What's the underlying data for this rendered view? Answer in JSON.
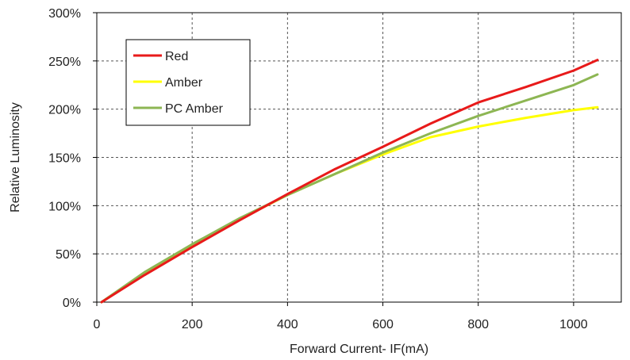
{
  "chart_data": {
    "type": "line",
    "title": "",
    "xlabel": "Forward Current- IF(mA)",
    "ylabel": "Relative Luminosity",
    "xlim": [
      0,
      1100
    ],
    "ylim": [
      0,
      300
    ],
    "x_ticks": [
      0,
      200,
      400,
      600,
      800,
      1000
    ],
    "y_ticks": [
      0,
      50,
      100,
      150,
      200,
      250,
      300
    ],
    "x_tick_labels": [
      "0",
      "200",
      "400",
      "600",
      "800",
      "1000"
    ],
    "y_tick_labels": [
      "0%",
      "50%",
      "100%",
      "150%",
      "200%",
      "250%",
      "300%"
    ],
    "grid": true,
    "legend_position": "top-left",
    "series": [
      {
        "name": "Red",
        "color": "#e81a1a",
        "points": [
          [
            10,
            0
          ],
          [
            100,
            28
          ],
          [
            200,
            57
          ],
          [
            300,
            85
          ],
          [
            400,
            112
          ],
          [
            500,
            138
          ],
          [
            600,
            161
          ],
          [
            700,
            185
          ],
          [
            800,
            207
          ],
          [
            825,
            211
          ],
          [
            900,
            223
          ],
          [
            1000,
            240
          ],
          [
            1050,
            251
          ]
        ]
      },
      {
        "name": "Amber",
        "color": "#ffff00",
        "points": [
          [
            10,
            0
          ],
          [
            100,
            30
          ],
          [
            200,
            59
          ],
          [
            300,
            86
          ],
          [
            400,
            111
          ],
          [
            500,
            133
          ],
          [
            600,
            153
          ],
          [
            700,
            171
          ],
          [
            800,
            182
          ],
          [
            900,
            191
          ],
          [
            1000,
            199
          ],
          [
            1050,
            202
          ]
        ]
      },
      {
        "name": "PC Amber",
        "color": "#8db653",
        "points": [
          [
            10,
            0
          ],
          [
            100,
            31
          ],
          [
            200,
            60
          ],
          [
            300,
            87
          ],
          [
            400,
            111
          ],
          [
            500,
            133
          ],
          [
            600,
            155
          ],
          [
            700,
            175
          ],
          [
            800,
            193
          ],
          [
            900,
            209
          ],
          [
            1000,
            225
          ],
          [
            1050,
            236
          ]
        ]
      }
    ]
  }
}
